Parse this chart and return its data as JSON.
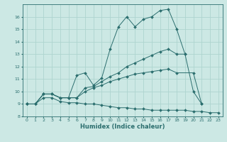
{
  "xlabel": "Humidex (Indice chaleur)",
  "ylabel": "",
  "xlim": [
    -0.5,
    23.5
  ],
  "ylim": [
    8,
    17
  ],
  "background_color": "#cce8e4",
  "grid_color": "#aed4cf",
  "line_color": "#2b6e6e",
  "lines": [
    {
      "x": [
        0,
        1,
        2,
        3,
        4,
        5,
        6,
        7,
        8,
        9,
        10,
        11,
        12,
        13,
        14,
        15,
        16,
        17,
        18,
        19,
        20,
        21
      ],
      "y": [
        9.0,
        9.0,
        9.8,
        9.8,
        9.5,
        9.5,
        11.3,
        11.5,
        10.5,
        11.1,
        13.4,
        15.2,
        16.0,
        15.2,
        15.8,
        16.0,
        16.5,
        16.6,
        15.0,
        13.0,
        10.0,
        9.0
      ],
      "marker": "D",
      "markersize": 2.0
    },
    {
      "x": [
        0,
        1,
        2,
        3,
        4,
        5,
        6,
        7,
        8,
        9,
        10,
        11,
        12,
        13,
        14,
        15,
        16,
        17,
        18,
        19
      ],
      "y": [
        9.0,
        9.0,
        9.8,
        9.8,
        9.5,
        9.5,
        9.5,
        10.3,
        10.4,
        10.8,
        11.2,
        11.5,
        12.0,
        12.3,
        12.6,
        12.9,
        13.2,
        13.4,
        13.0,
        13.0
      ],
      "marker": "D",
      "markersize": 2.0
    },
    {
      "x": [
        0,
        1,
        2,
        3,
        4,
        5,
        6,
        7,
        8,
        9,
        10,
        11,
        12,
        13,
        14,
        15,
        16,
        17,
        18,
        20,
        21
      ],
      "y": [
        9.0,
        9.0,
        9.8,
        9.8,
        9.5,
        9.5,
        9.5,
        10.0,
        10.3,
        10.5,
        10.8,
        11.0,
        11.2,
        11.4,
        11.5,
        11.6,
        11.7,
        11.8,
        11.5,
        11.5,
        9.0
      ],
      "marker": "D",
      "markersize": 2.0
    },
    {
      "x": [
        0,
        1,
        2,
        3,
        4,
        5,
        6,
        7,
        8,
        9,
        10,
        11,
        12,
        13,
        14,
        15,
        16,
        17,
        18,
        19,
        20,
        21,
        22,
        23
      ],
      "y": [
        9.0,
        9.0,
        9.5,
        9.5,
        9.2,
        9.1,
        9.1,
        9.0,
        9.0,
        8.9,
        8.8,
        8.7,
        8.7,
        8.6,
        8.6,
        8.5,
        8.5,
        8.5,
        8.5,
        8.5,
        8.4,
        8.4,
        8.3,
        8.3
      ],
      "marker": "D",
      "markersize": 2.0
    }
  ],
  "xticks": [
    0,
    1,
    2,
    3,
    4,
    5,
    6,
    7,
    8,
    9,
    10,
    11,
    12,
    13,
    14,
    15,
    16,
    17,
    18,
    19,
    20,
    21,
    22,
    23
  ],
  "yticks": [
    8,
    9,
    10,
    11,
    12,
    13,
    14,
    15,
    16
  ],
  "tick_fontsize": 4.5,
  "xlabel_fontsize": 6.0
}
